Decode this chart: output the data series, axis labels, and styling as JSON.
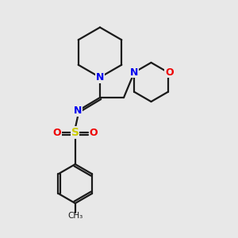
{
  "bg_color": "#e8e8e8",
  "bond_color": "#1a1a1a",
  "nitrogen_color": "#0000ee",
  "oxygen_color": "#ee0000",
  "sulfur_color": "#cccc00",
  "line_width": 1.6,
  "fig_size": [
    3.0,
    3.0
  ],
  "dpi": 100,
  "xlim": [
    0,
    10
  ],
  "ylim": [
    0,
    10
  ]
}
